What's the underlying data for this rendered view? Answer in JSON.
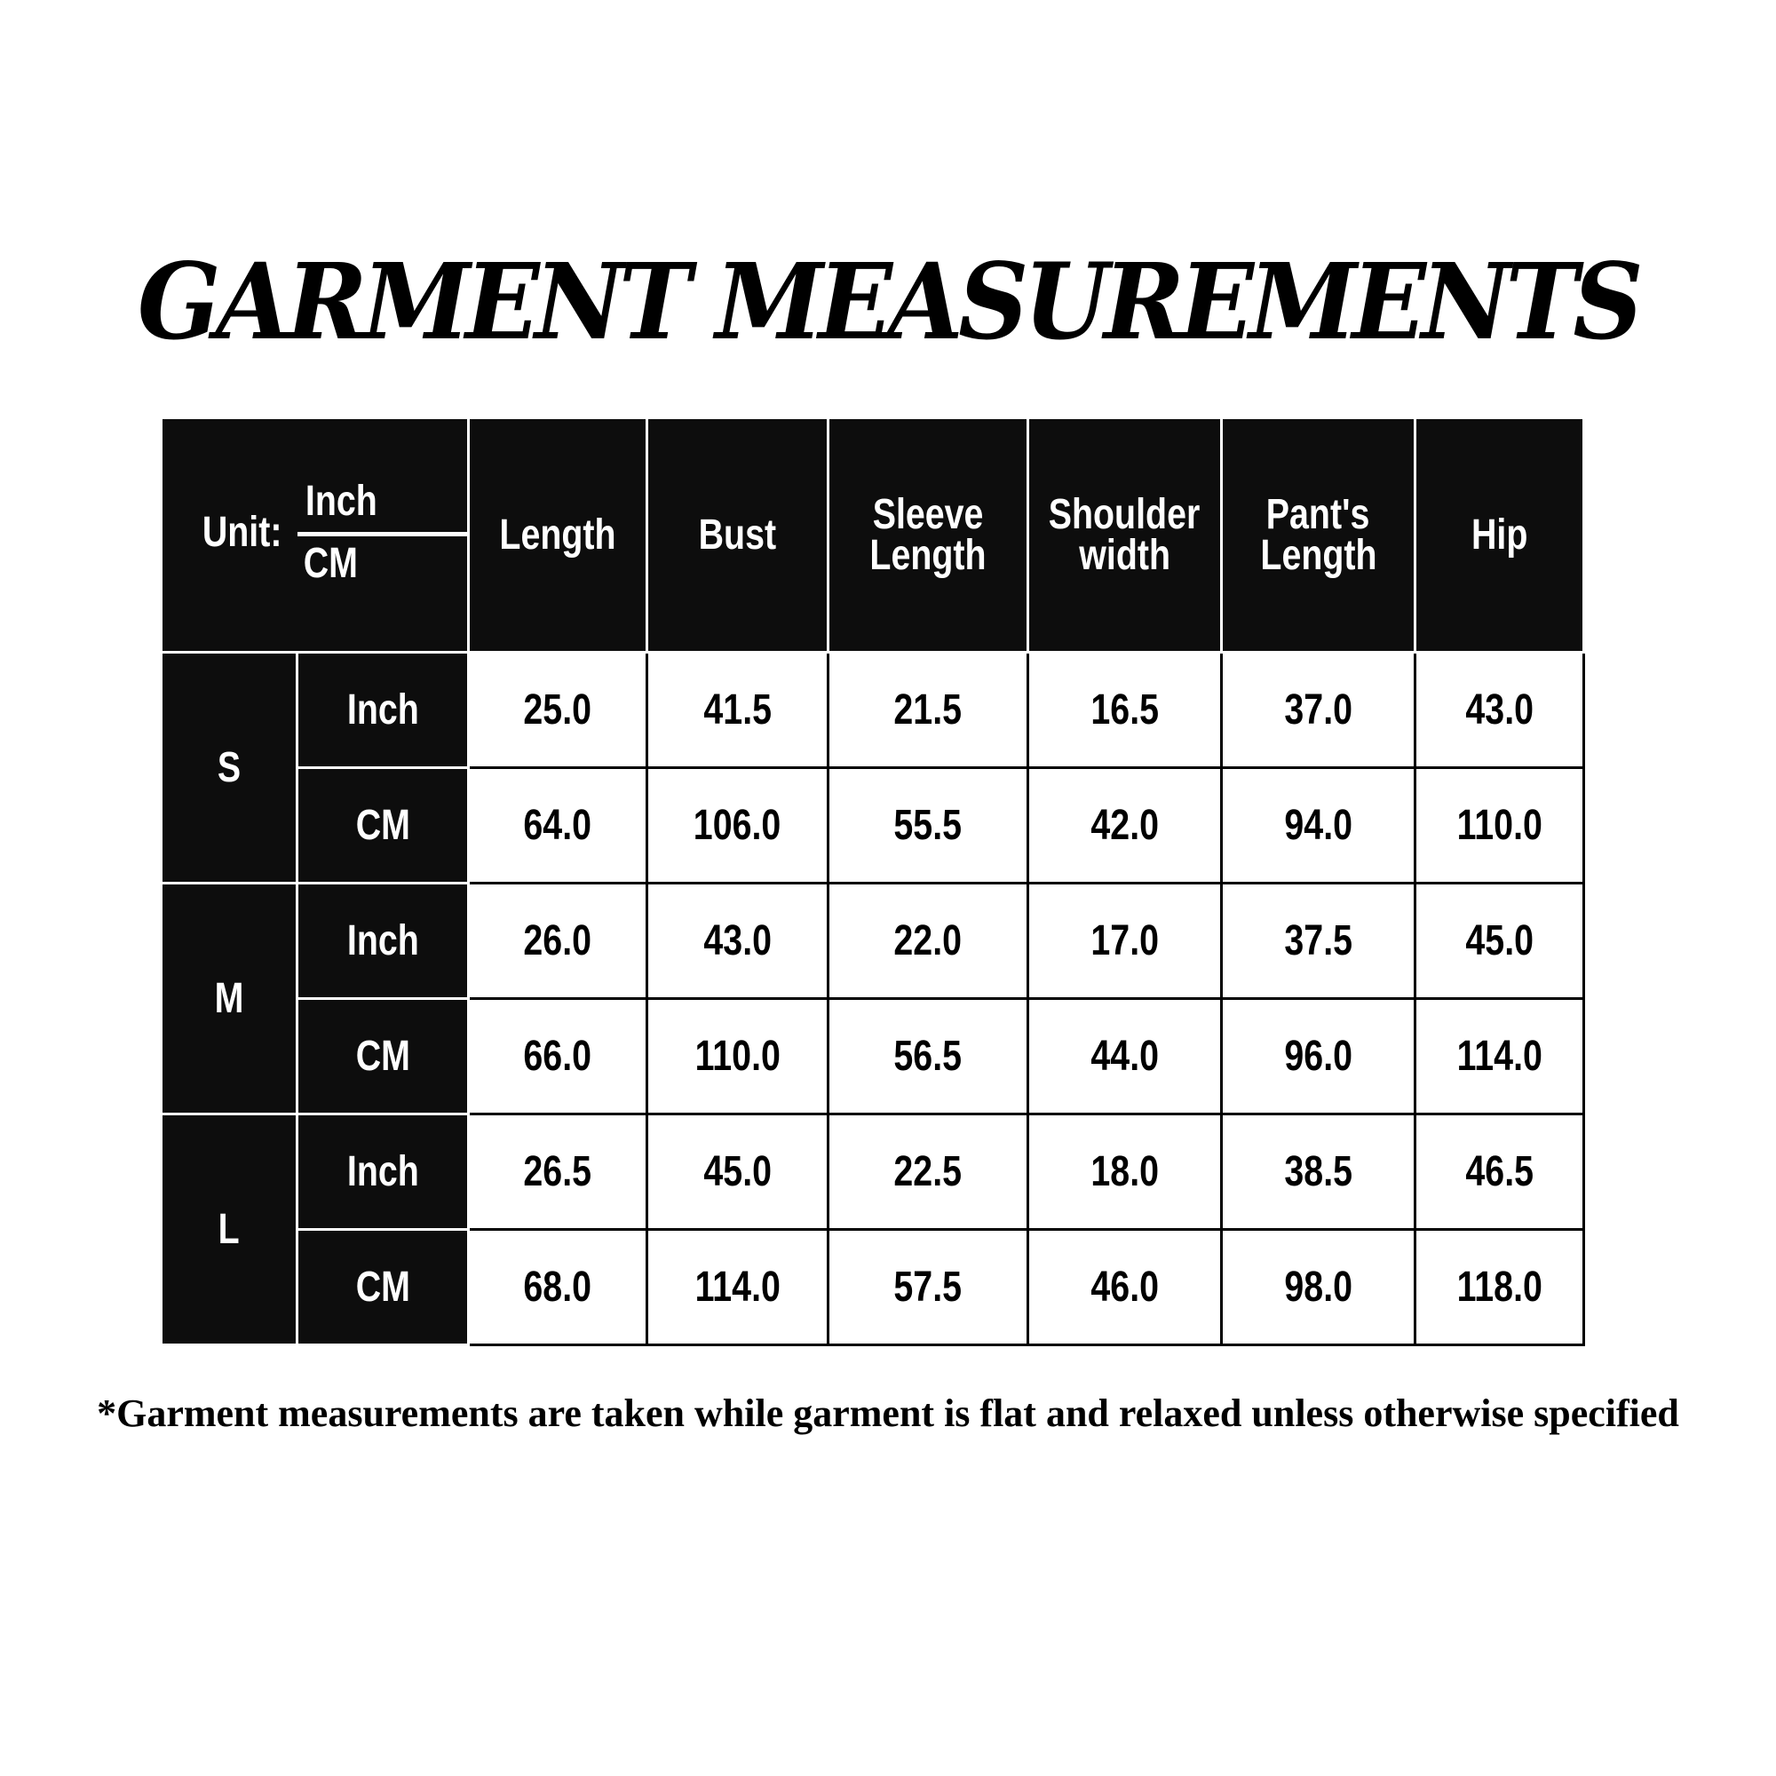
{
  "title": "GARMENT MEASUREMENTS",
  "table": {
    "unit_label": "Unit:",
    "unit_top": "Inch",
    "unit_bottom": "CM",
    "columns": [
      [
        "Length"
      ],
      [
        "Bust"
      ],
      [
        "Sleeve",
        "Length"
      ],
      [
        "Shoulder",
        "width"
      ],
      [
        "Pant's",
        "Length"
      ],
      [
        "Hip"
      ]
    ],
    "sizes": [
      {
        "size": "S",
        "rows": [
          {
            "unit": "Inch",
            "values": [
              "25.0",
              "41.5",
              "21.5",
              "16.5",
              "37.0",
              "43.0"
            ]
          },
          {
            "unit": "CM",
            "values": [
              "64.0",
              "106.0",
              "55.5",
              "42.0",
              "94.0",
              "110.0"
            ]
          }
        ]
      },
      {
        "size": "M",
        "rows": [
          {
            "unit": "Inch",
            "values": [
              "26.0",
              "43.0",
              "22.0",
              "17.0",
              "37.5",
              "45.0"
            ]
          },
          {
            "unit": "CM",
            "values": [
              "66.0",
              "110.0",
              "56.5",
              "44.0",
              "96.0",
              "114.0"
            ]
          }
        ]
      },
      {
        "size": "L",
        "rows": [
          {
            "unit": "Inch",
            "values": [
              "26.5",
              "45.0",
              "22.5",
              "18.0",
              "38.5",
              "46.5"
            ]
          },
          {
            "unit": "CM",
            "values": [
              "68.0",
              "114.0",
              "57.5",
              "46.0",
              "98.0",
              "118.0"
            ]
          }
        ]
      }
    ]
  },
  "footnote": "*Garment measurements are taken while garment is flat and relaxed unless otherwise specified"
}
